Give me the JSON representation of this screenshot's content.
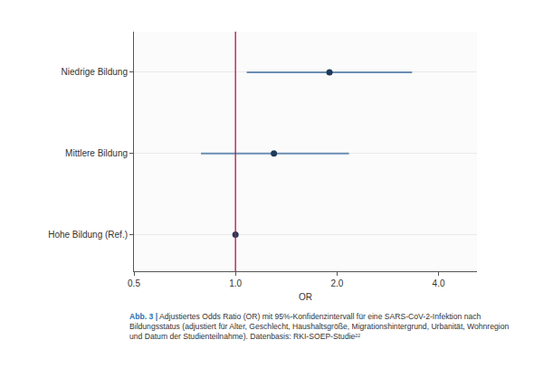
{
  "chart_data": {
    "type": "forest",
    "categories": [
      "Niedrige Bildung",
      "Mittlere Bildung",
      "Hohe Bildung (Ref.)"
    ],
    "values": [
      1.9,
      1.3,
      1.0
    ],
    "ci_lower": [
      1.08,
      0.79,
      null
    ],
    "ci_upper": [
      3.34,
      2.17,
      null
    ],
    "reference_value": 1,
    "xlabel": "OR",
    "xlim": [
      0.5,
      5.2
    ],
    "xticks": [
      0.5,
      {
        "value": 1,
        "label": "1.0"
      },
      {
        "value": 2,
        "label": "2.0"
      },
      {
        "value": 4,
        "label": "4.0"
      }
    ],
    "log": "x",
    "grid": true,
    "color": "#1f3b5a",
    "caption": {
      "label": "Abb. 3 |",
      "text": "Adjustiertes Odds Ratio (OR) mit 95%-Konfidenzintervall für eine SARS-CoV-2-Infektion nach Bildungsstatus (adjustiert für Alter, Geschlecht, Haushaltsgröße, Migrationshintergrund, Urbanität, Wohnregion und Datum der Studienteilnahme). Datenbasis: RKI-SOEP-Studie²²"
    }
  }
}
